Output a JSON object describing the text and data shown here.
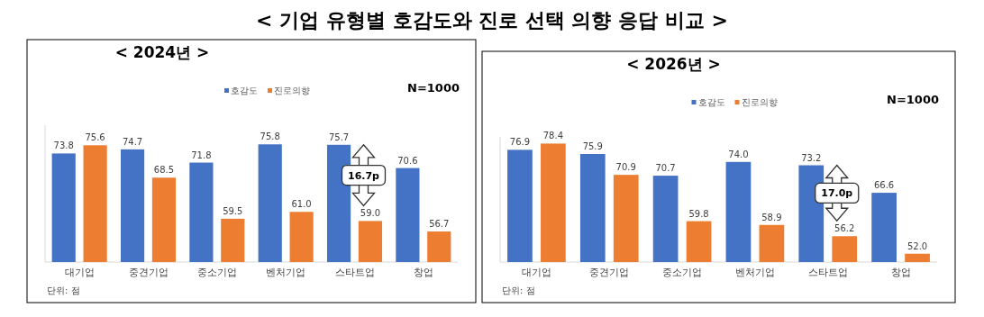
{
  "chart_data": [
    {
      "type": "bar",
      "title": "< 기업 유형별 호감도와 진로 선택 의향 응답 비교 >",
      "subtitle": "< 2024년 >",
      "categories": [
        "대기업",
        "중견기업",
        "중소기업",
        "벤처기업",
        "스타트업",
        "창업"
      ],
      "series": [
        {
          "name": "호감도",
          "color": "#4472c4",
          "values": [
            73.8,
            74.7,
            71.8,
            75.8,
            75.7,
            70.6
          ],
          "value_labels": [
            "73.8",
            "74.7",
            "71.8",
            "75.8",
            "75.7",
            "70.6"
          ]
        },
        {
          "name": "진로의향",
          "color": "#ed7d31",
          "values": [
            75.6,
            68.5,
            59.5,
            61.0,
            59.0,
            56.7
          ],
          "value_labels": [
            "75.6",
            "68.5",
            "59.5",
            "61.0",
            "59.0",
            "56.7"
          ]
        }
      ],
      "ylim": [
        50,
        80
      ],
      "tick_labels": "x",
      "legend": "top",
      "annotations": [
        "N=1000",
        "16.7p",
        "단위: 점"
      ]
    },
    {
      "type": "bar",
      "subtitle": "< 2026년 >",
      "categories": [
        "대기업",
        "중견기업",
        "중소기업",
        "벤처기업",
        "스타트업",
        "창업"
      ],
      "series": [
        {
          "name": "호감도",
          "color": "#4472c4",
          "values": [
            76.9,
            75.9,
            70.7,
            74.0,
            73.2,
            66.6
          ],
          "value_labels": [
            "76.9",
            "75.9",
            "70.7",
            "74.0",
            "73.2",
            "66.6"
          ]
        },
        {
          "name": "진로의향",
          "color": "#ed7d31",
          "values": [
            78.4,
            70.9,
            59.8,
            58.9,
            56.2,
            52.0
          ],
          "value_labels": [
            "78.4",
            "70.9",
            "59.8",
            "58.9",
            "56.2",
            "52.0"
          ]
        }
      ],
      "ylim": [
        50,
        80
      ],
      "tick_labels": "x",
      "legend": "top",
      "annotations": [
        "N=1000",
        "17.0p",
        "단위: 점"
      ]
    }
  ]
}
